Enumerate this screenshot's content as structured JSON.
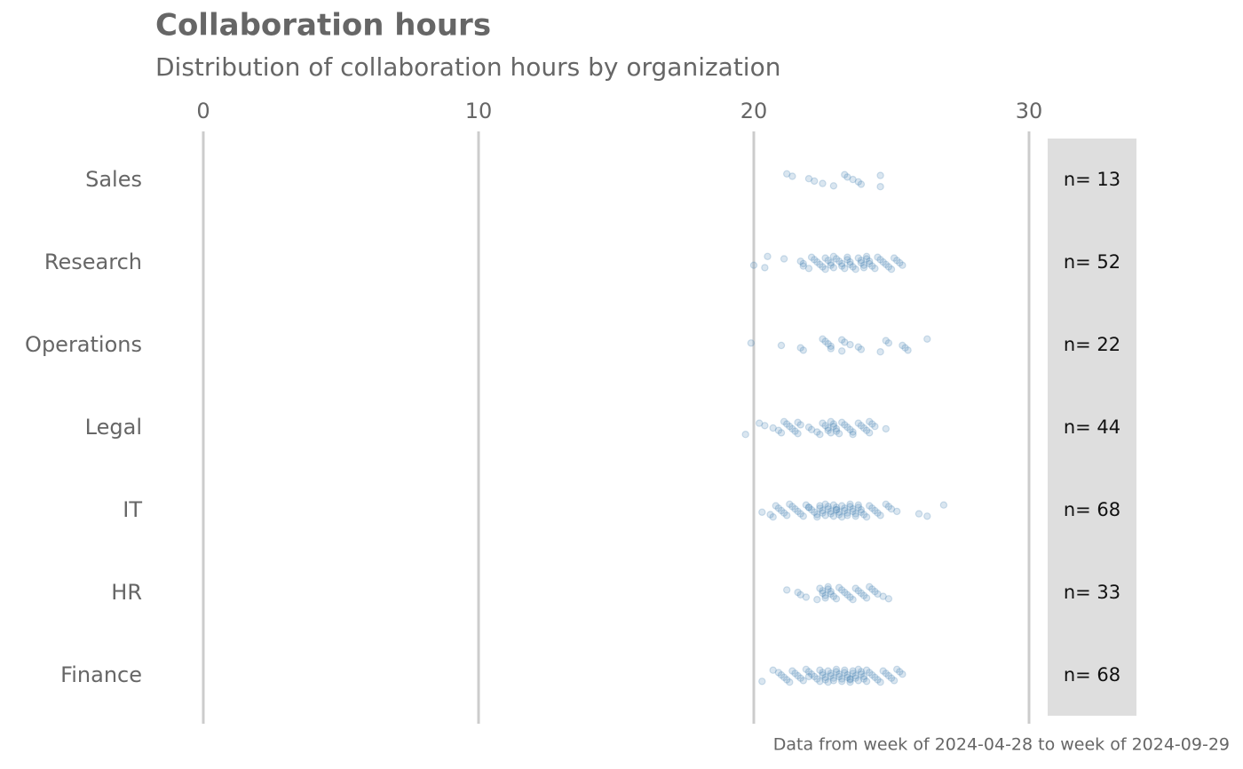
{
  "chart_data": {
    "type": "strip",
    "title": "Collaboration hours",
    "subtitle": "Distribution of collaboration hours by organization",
    "caption": "Data from week of 2024-04-28 to week of 2024-09-29",
    "categories": [
      "Sales",
      "Research",
      "Operations",
      "Legal",
      "IT",
      "HR",
      "Finance"
    ],
    "color": "#4682b4",
    "grid": true,
    "xlim": [
      0,
      30
    ],
    "xticks": [
      0,
      10,
      20,
      30
    ],
    "values": [
      [
        21.2,
        21.4,
        22.0,
        22.2,
        22.5,
        22.9,
        23.3,
        23.4,
        23.6,
        23.8,
        23.9,
        24.6,
        24.6
      ],
      [
        20.0,
        20.4,
        20.5,
        21.1,
        21.7,
        21.8,
        21.8,
        22.0,
        22.1,
        22.2,
        22.3,
        22.4,
        22.5,
        22.6,
        22.6,
        22.7,
        22.8,
        22.8,
        22.9,
        22.9,
        23.0,
        23.1,
        23.2,
        23.2,
        23.3,
        23.4,
        23.4,
        23.5,
        23.5,
        23.6,
        23.7,
        23.8,
        23.9,
        23.9,
        24.0,
        24.0,
        24.1,
        24.1,
        24.2,
        24.2,
        24.3,
        24.4,
        24.5,
        24.6,
        24.7,
        24.8,
        24.9,
        25.0,
        25.1,
        25.2,
        25.3,
        25.4
      ],
      [
        19.9,
        21.0,
        21.7,
        21.8,
        22.5,
        22.6,
        22.7,
        22.8,
        22.8,
        23.2,
        23.2,
        23.3,
        23.5,
        23.8,
        23.9,
        24.6,
        24.8,
        24.9,
        25.4,
        25.5,
        25.6,
        26.3
      ],
      [
        19.7,
        20.2,
        20.4,
        20.7,
        20.9,
        21.0,
        21.1,
        21.2,
        21.3,
        21.4,
        21.5,
        21.6,
        21.6,
        21.7,
        22.0,
        22.1,
        22.3,
        22.4,
        22.5,
        22.6,
        22.7,
        22.7,
        22.8,
        22.8,
        22.9,
        22.9,
        23.0,
        23.0,
        23.1,
        23.2,
        23.3,
        23.4,
        23.5,
        23.6,
        23.6,
        23.8,
        23.9,
        24.0,
        24.1,
        24.2,
        24.2,
        24.3,
        24.4,
        24.8
      ],
      [
        20.3,
        20.6,
        20.7,
        20.8,
        20.9,
        21.0,
        21.1,
        21.2,
        21.3,
        21.4,
        21.5,
        21.6,
        21.7,
        21.8,
        21.9,
        22.0,
        22.1,
        22.2,
        22.3,
        22.3,
        22.4,
        22.4,
        22.5,
        22.5,
        22.6,
        22.6,
        22.7,
        22.7,
        22.8,
        22.8,
        22.9,
        22.9,
        23.0,
        23.0,
        23.1,
        23.1,
        23.2,
        23.2,
        23.3,
        23.3,
        23.4,
        23.4,
        23.5,
        23.5,
        23.6,
        23.6,
        23.7,
        23.7,
        23.8,
        23.8,
        23.9,
        23.9,
        24.0,
        24.1,
        24.2,
        24.3,
        24.4,
        24.5,
        24.6,
        24.8,
        24.9,
        25.0,
        25.2,
        26.0,
        26.3,
        26.9,
        22.0,
        23.0
      ],
      [
        21.2,
        21.6,
        21.7,
        21.9,
        22.3,
        22.4,
        22.5,
        22.5,
        22.6,
        22.6,
        22.7,
        22.7,
        22.8,
        22.8,
        22.9,
        23.0,
        23.1,
        23.2,
        23.3,
        23.4,
        23.5,
        23.6,
        23.7,
        23.8,
        23.9,
        24.0,
        24.1,
        24.2,
        24.3,
        24.4,
        24.5,
        24.7,
        24.9
      ],
      [
        20.3,
        20.7,
        20.9,
        21.0,
        21.1,
        21.2,
        21.3,
        21.4,
        21.5,
        21.6,
        21.7,
        21.8,
        21.9,
        22.0,
        22.1,
        22.2,
        22.3,
        22.4,
        22.4,
        22.5,
        22.5,
        22.6,
        22.6,
        22.7,
        22.7,
        22.8,
        22.8,
        22.9,
        22.9,
        23.0,
        23.0,
        23.1,
        23.1,
        23.2,
        23.2,
        23.3,
        23.3,
        23.4,
        23.4,
        23.5,
        23.5,
        23.6,
        23.6,
        23.7,
        23.7,
        23.8,
        23.8,
        23.9,
        23.9,
        24.0,
        24.0,
        24.1,
        24.1,
        24.2,
        24.3,
        24.4,
        24.5,
        24.6,
        24.7,
        24.8,
        24.9,
        25.0,
        25.1,
        25.2,
        25.3,
        25.4,
        22.0,
        23.5
      ]
    ],
    "n": [
      13,
      52,
      22,
      44,
      68,
      33,
      68
    ],
    "n_labels": [
      "n= 13",
      "n= 52",
      "n= 22",
      "n= 44",
      "n= 68",
      "n= 33",
      "n= 68"
    ]
  }
}
